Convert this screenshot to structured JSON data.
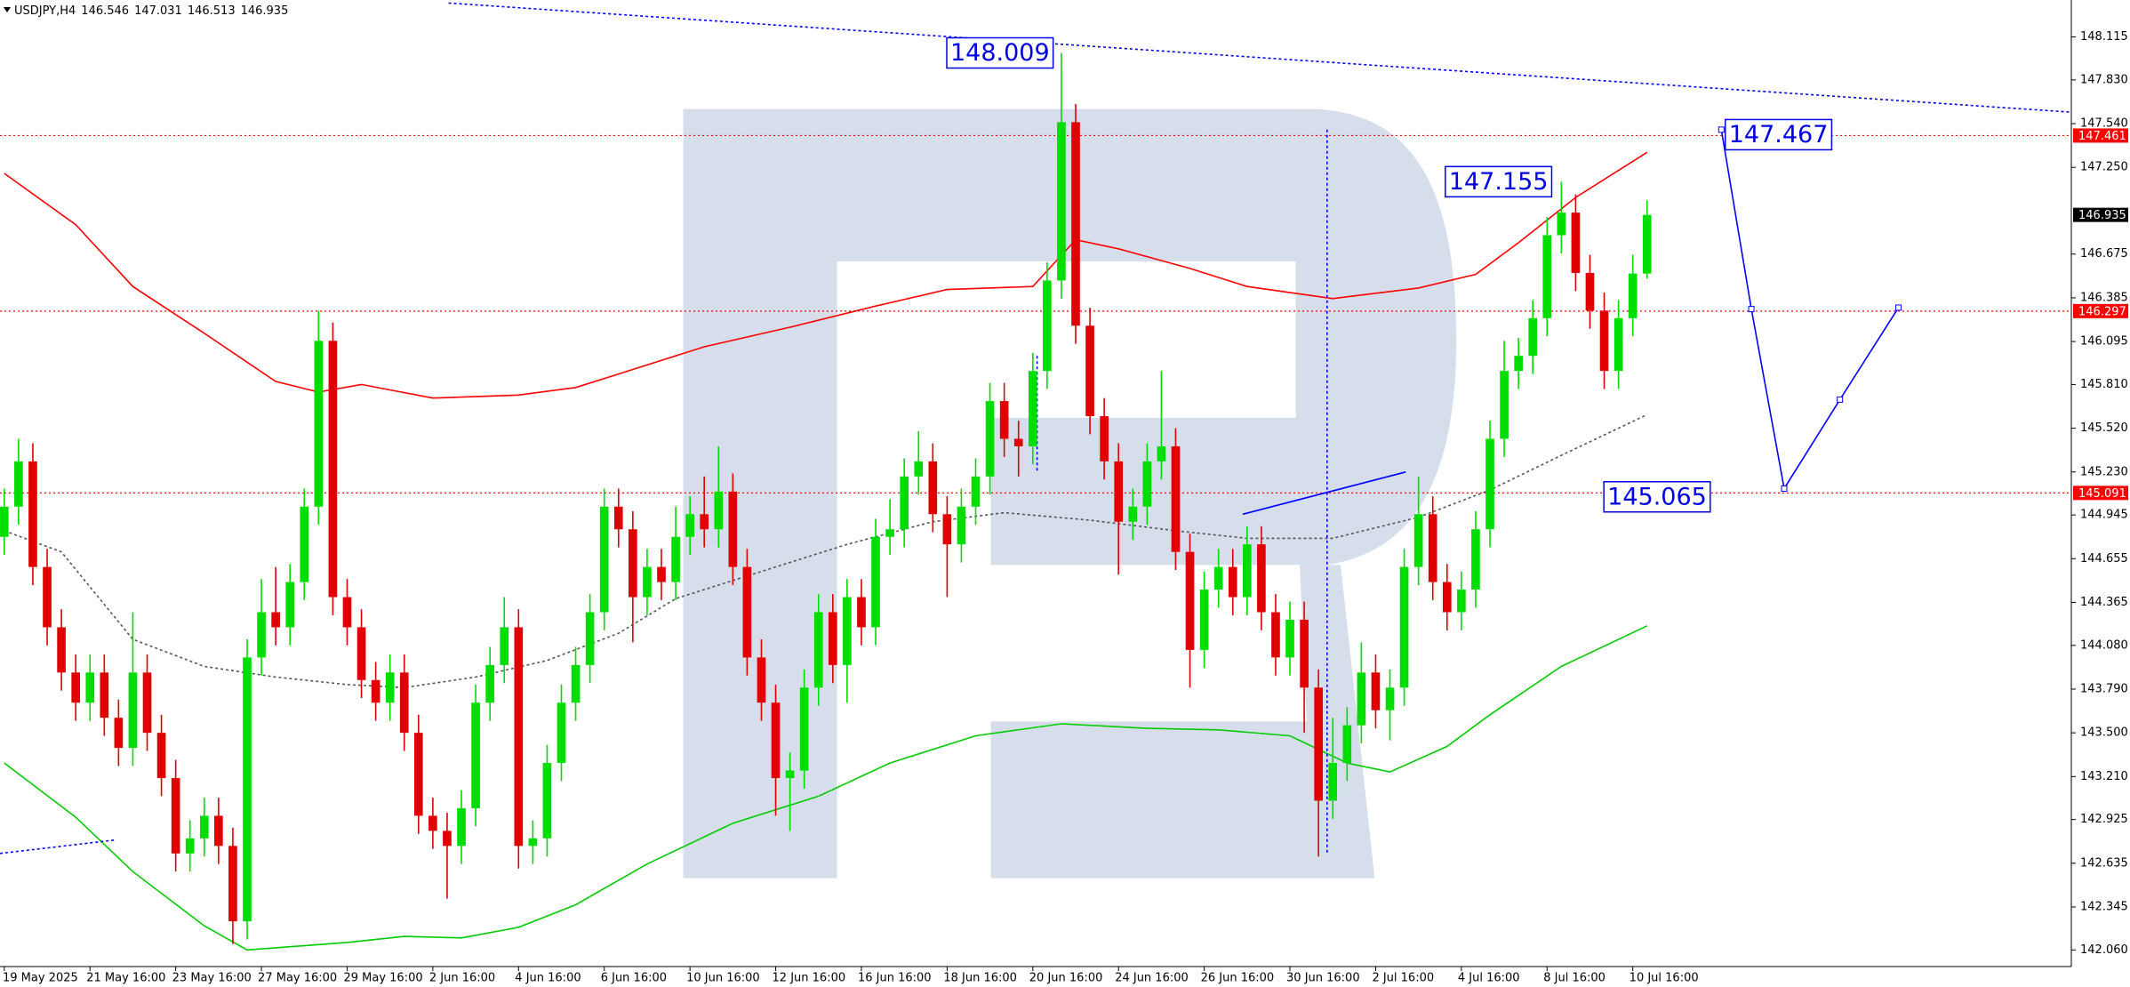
{
  "chart_data": {
    "type": "candlestick",
    "symbol": "USDJPY,H4",
    "up_color": "#00dd00",
    "down_color": "#e00000",
    "x_labels": [
      "19 May 2025",
      "21 May 16:00",
      "23 May 16:00",
      "27 May 16:00",
      "29 May 16:00",
      "2 Jun 16:00",
      "4 Jun 16:00",
      "6 Jun 16:00",
      "10 Jun 16:00",
      "12 Jun 16:00",
      "16 Jun 16:00",
      "18 Jun 16:00",
      "20 Jun 16:00",
      "24 Jun 16:00",
      "26 Jun 16:00",
      "30 Jun 16:00",
      "2 Jul 16:00",
      "4 Jul 16:00",
      "8 Jul 16:00",
      "10 Jul 16:00"
    ],
    "xlim": [
      -0.3,
      144.7
    ],
    "ylim": [
      141.95,
      148.36
    ],
    "yticks": [
      148.115,
      {
        "value": 147.83,
        "label": "147.830"
      },
      {
        "value": 147.54,
        "label": "147.540"
      },
      {
        "value": 147.25,
        "label": "147.250"
      },
      146.675,
      146.385,
      146.095,
      {
        "value": 145.81,
        "label": "145.810"
      },
      {
        "value": 145.52,
        "label": "145.520"
      },
      {
        "value": 145.23,
        "label": "145.230"
      },
      144.945,
      144.655,
      144.365,
      {
        "value": 144.08,
        "label": "144.080"
      },
      {
        "value": 143.79,
        "label": "143.790"
      },
      {
        "value": 143.5,
        "label": "143.500"
      },
      {
        "value": 143.21,
        "label": "143.210"
      },
      142.925,
      142.635,
      142.345,
      {
        "value": 142.06,
        "label": "142.060"
      }
    ],
    "open": [
      144.8,
      145.0,
      145.3,
      144.6,
      144.2,
      143.9,
      143.7,
      143.9,
      143.6,
      143.4,
      143.9,
      143.5,
      143.2,
      142.7,
      142.8,
      142.95,
      142.75,
      142.25,
      144.0,
      144.3,
      144.2,
      144.5,
      145.0,
      146.1,
      144.4,
      144.2,
      143.85,
      143.7,
      143.9,
      143.5,
      142.95,
      142.85,
      142.75,
      143.0,
      143.7,
      143.95,
      144.2,
      142.75,
      142.8,
      143.3,
      143.7,
      143.95,
      144.3,
      145.0,
      144.85,
      144.4,
      144.6,
      144.5,
      144.8,
      144.95,
      144.85,
      145.1,
      144.6,
      144.0,
      143.7,
      143.2,
      143.25,
      143.8,
      144.3,
      143.95,
      144.4,
      144.2,
      144.8,
      144.85,
      145.2,
      145.3,
      144.95,
      144.75,
      145.0,
      145.2,
      145.7,
      145.45,
      145.4,
      145.9,
      146.5,
      147.55,
      146.2,
      145.6,
      145.3,
      144.9,
      145.0,
      145.3,
      145.4,
      144.7,
      144.05,
      144.45,
      144.6,
      144.4,
      144.75,
      144.3,
      144.0,
      144.25,
      143.8,
      143.05,
      143.3,
      143.55,
      143.9,
      143.65,
      143.8,
      144.6,
      144.95,
      144.5,
      144.3,
      144.45,
      144.85,
      145.45,
      145.9,
      146.0,
      146.25,
      146.8,
      146.95,
      146.55,
      146.3,
      145.9,
      146.25,
      146.546
    ],
    "high": [
      145.12,
      145.45,
      145.42,
      144.72,
      144.32,
      144.02,
      144.02,
      144.02,
      143.72,
      144.3,
      144.02,
      143.62,
      143.32,
      142.92,
      143.07,
      143.07,
      142.87,
      144.12,
      144.52,
      144.6,
      144.62,
      145.12,
      146.3,
      146.22,
      144.52,
      144.32,
      143.97,
      144.02,
      144.02,
      143.62,
      143.07,
      142.97,
      143.12,
      143.82,
      144.07,
      144.4,
      144.32,
      142.92,
      143.42,
      143.82,
      144.07,
      144.42,
      145.12,
      145.12,
      144.97,
      144.72,
      144.72,
      145.0,
      145.07,
      145.2,
      145.4,
      145.22,
      144.72,
      144.12,
      143.82,
      143.37,
      143.92,
      144.42,
      144.42,
      144.52,
      144.52,
      144.92,
      145.05,
      145.32,
      145.5,
      145.42,
      145.07,
      145.12,
      145.32,
      145.82,
      145.82,
      145.57,
      146.02,
      146.62,
      148.009,
      147.67,
      146.32,
      145.72,
      145.42,
      145.12,
      145.42,
      145.9,
      145.52,
      144.82,
      144.57,
      144.72,
      144.72,
      144.87,
      144.87,
      144.42,
      144.37,
      144.37,
      143.92,
      143.6,
      143.67,
      144.1,
      144.02,
      143.92,
      144.72,
      145.2,
      145.07,
      144.62,
      144.57,
      144.97,
      145.57,
      146.1,
      146.12,
      146.37,
      146.92,
      147.155,
      147.07,
      146.67,
      146.42,
      146.37,
      146.67,
      147.031
    ],
    "low": [
      144.68,
      144.88,
      144.48,
      144.08,
      143.78,
      143.58,
      143.58,
      143.48,
      143.28,
      143.28,
      143.38,
      143.08,
      142.58,
      142.58,
      142.68,
      142.63,
      142.1,
      142.13,
      143.88,
      144.08,
      144.08,
      144.38,
      144.88,
      144.28,
      144.08,
      143.73,
      143.58,
      143.58,
      143.38,
      142.83,
      142.73,
      142.4,
      142.63,
      142.88,
      143.58,
      143.83,
      142.6,
      142.63,
      142.68,
      143.18,
      143.58,
      143.83,
      144.18,
      144.73,
      144.1,
      144.28,
      144.38,
      144.38,
      144.68,
      144.73,
      144.73,
      144.48,
      143.88,
      143.58,
      142.95,
      142.85,
      143.13,
      143.68,
      143.83,
      143.7,
      144.08,
      144.08,
      144.68,
      144.73,
      145.08,
      144.83,
      144.4,
      144.63,
      144.88,
      145.08,
      145.33,
      145.2,
      145.28,
      145.78,
      146.38,
      146.08,
      145.48,
      145.18,
      144.55,
      144.78,
      144.88,
      145.18,
      144.58,
      143.8,
      143.93,
      144.33,
      144.28,
      144.28,
      144.18,
      143.88,
      143.88,
      143.5,
      142.68,
      142.93,
      143.18,
      143.43,
      143.53,
      143.45,
      143.68,
      144.48,
      144.38,
      144.18,
      144.18,
      144.33,
      144.73,
      145.33,
      145.78,
      145.88,
      146.13,
      146.68,
      146.43,
      146.18,
      145.78,
      145.78,
      146.13,
      146.513
    ],
    "close": [
      145.0,
      145.3,
      144.6,
      144.2,
      143.9,
      143.7,
      143.9,
      143.6,
      143.4,
      143.9,
      143.5,
      143.2,
      142.7,
      142.8,
      142.95,
      142.75,
      142.25,
      144.0,
      144.3,
      144.2,
      144.5,
      145.0,
      146.1,
      144.4,
      144.2,
      143.85,
      143.7,
      143.9,
      143.5,
      142.95,
      142.85,
      142.75,
      143.0,
      143.7,
      143.95,
      144.2,
      142.75,
      142.8,
      143.3,
      143.7,
      143.95,
      144.3,
      145.0,
      144.85,
      144.4,
      144.6,
      144.5,
      144.8,
      144.95,
      144.85,
      145.1,
      144.6,
      144.0,
      143.7,
      143.2,
      143.25,
      143.8,
      144.3,
      143.95,
      144.4,
      144.2,
      144.8,
      144.85,
      145.2,
      145.3,
      144.95,
      144.75,
      145.0,
      145.2,
      145.7,
      145.45,
      145.4,
      145.9,
      146.5,
      147.55,
      146.2,
      145.6,
      145.3,
      144.9,
      145.0,
      145.3,
      145.4,
      144.7,
      144.05,
      144.45,
      144.6,
      144.4,
      144.75,
      144.3,
      144.0,
      144.25,
      143.8,
      143.05,
      143.3,
      143.55,
      143.9,
      143.65,
      143.8,
      144.6,
      144.95,
      144.5,
      144.3,
      144.45,
      144.85,
      145.45,
      145.9,
      146.0,
      146.25,
      146.8,
      146.95,
      146.55,
      146.3,
      145.9,
      146.25,
      146.546,
      146.935
    ],
    "series": [
      {
        "color": "#ff0000",
        "dash": false,
        "x": [
          0,
          5,
          9,
          14,
          19,
          22,
          25,
          30,
          36,
          40,
          43,
          49,
          55,
          61,
          66,
          72,
          75,
          78,
          83,
          87,
          93,
          99,
          103,
          106,
          110,
          115
        ],
        "values": [
          147.21,
          146.87,
          146.46,
          146.15,
          145.83,
          145.76,
          145.81,
          145.72,
          145.74,
          145.79,
          145.88,
          146.06,
          146.19,
          146.33,
          146.44,
          146.46,
          146.77,
          146.71,
          146.58,
          146.46,
          146.38,
          146.45,
          146.54,
          146.75,
          147.05,
          147.35
        ]
      },
      {
        "color": "#555555",
        "dash": true,
        "x": [
          0,
          4,
          9,
          14,
          19,
          24,
          28,
          33,
          38,
          43,
          47,
          53,
          59,
          65,
          70,
          76,
          82,
          87,
          93,
          99,
          104,
          109,
          115
        ],
        "values": [
          144.84,
          144.7,
          144.12,
          143.94,
          143.87,
          143.82,
          143.8,
          143.87,
          143.98,
          144.16,
          144.39,
          144.57,
          144.75,
          144.9,
          144.96,
          144.91,
          144.84,
          144.79,
          144.79,
          144.93,
          145.11,
          145.34,
          145.61
        ]
      },
      {
        "color": "#00cc00",
        "dash": false,
        "x": [
          0,
          5,
          9,
          14,
          17,
          24,
          28,
          32,
          36,
          40,
          45,
          51,
          57,
          62,
          68,
          74,
          80,
          85,
          90,
          94,
          97,
          101,
          104,
          109,
          115
        ],
        "values": [
          143.3,
          142.94,
          142.58,
          142.22,
          142.06,
          142.11,
          142.15,
          142.14,
          142.21,
          142.36,
          142.63,
          142.9,
          143.08,
          143.3,
          143.48,
          143.56,
          143.53,
          143.52,
          143.48,
          143.3,
          143.24,
          143.41,
          143.62,
          143.94,
          144.21
        ]
      },
      {
        "color": "#0000ff",
        "dash": true,
        "x": [
          31.1,
          148.8
        ],
        "values": [
          148.34,
          147.59
        ]
      },
      {
        "color": "#0000ff",
        "dash": true,
        "x": [
          -0.3,
          7.8
        ],
        "values": [
          142.7,
          142.79
        ]
      },
      {
        "color": "#0000ff",
        "dash": false,
        "x": [
          86.7,
          98.1
        ],
        "values": [
          144.95,
          145.23
        ]
      },
      {
        "color": "#0000ff",
        "dash": true,
        "x": [
          92.6,
          92.6
        ],
        "values": [
          147.5,
          142.69
        ]
      },
      {
        "color": "#0000ff",
        "dash": true,
        "x": [
          72.3,
          72.3
        ],
        "values": [
          146.0,
          145.23
        ]
      },
      {
        "color": "#0000ff",
        "dash": false,
        "markers": true,
        "x": [
          120.2,
          122.3,
          124.6,
          128.5,
          132.6
        ],
        "values": [
          147.5,
          146.31,
          145.12,
          145.71,
          146.32
        ]
      }
    ],
    "levels": [
      {
        "value": 147.461,
        "color": "#ff0000"
      },
      {
        "value": 146.297,
        "color": "#ff0000"
      },
      {
        "value": 145.091,
        "color": "#ff0000"
      }
    ],
    "annotations": [
      148.009,
      147.155,
      147.467,
      145.065
    ]
  }
}
